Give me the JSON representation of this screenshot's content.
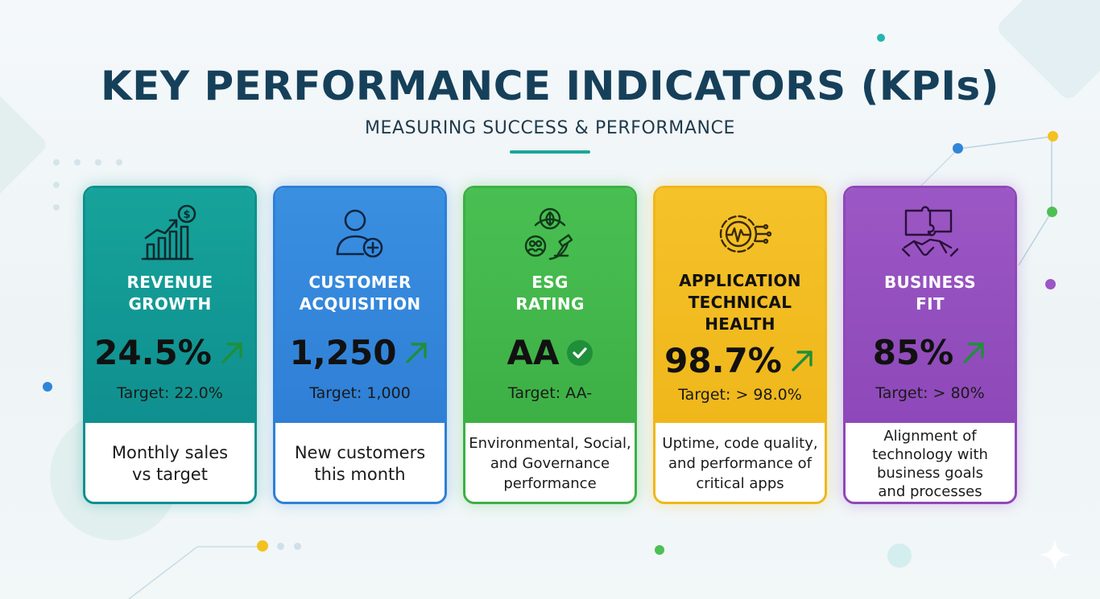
{
  "header": {
    "title": "KEY PERFORMANCE INDICATORS (KPIs)",
    "subtitle": "MEASURING SUCCESS & PERFORMANCE"
  },
  "colors": {
    "title": "#16405a",
    "accent_rule": "#1ea59a",
    "trend_up": "#1f8f3a"
  },
  "cards": [
    {
      "id": "revenue-growth",
      "title_line1": "REVENUE",
      "title_line2": "GROWTH",
      "value": "24.5%",
      "trend": "up",
      "target": "Target: 22.0%",
      "description_line1": "Monthly sales",
      "description_line2": "vs target",
      "icon": "chart-growth-dollar-icon",
      "color": "#16a39a",
      "color_dark": "#0f8f8f"
    },
    {
      "id": "customer-acquisition",
      "title_line1": "CUSTOMER",
      "title_line2": "ACQUISITION",
      "value": "1,250",
      "trend": "up",
      "target": "Target: 1,000",
      "description_line1": "New customers",
      "description_line2": "this month",
      "icon": "user-add-icon",
      "color": "#3a8fe0",
      "color_dark": "#2f7fd6"
    },
    {
      "id": "esg-rating",
      "title_line1": "ESG",
      "title_line2": "RATING",
      "value": "AA",
      "trend": "check",
      "target": "Target: AA-",
      "description_line1": "Environmental, Social,",
      "description_line2": "and Governance",
      "description_line3": "performance",
      "icon": "leaf-people-gavel-icon",
      "color": "#49bf52",
      "color_dark": "#3db045"
    },
    {
      "id": "application-technical-health",
      "title_line1": "APPLICATION",
      "title_line2": "TECHNICAL",
      "title_line3": "HEALTH",
      "value": "98.7%",
      "trend": "up",
      "target": "Target: > 98.0%",
      "description_line1": "Uptime, code quality,",
      "description_line2": "and performance of",
      "description_line3": "critical apps",
      "icon": "gear-pulse-circuit-icon",
      "color": "#f5c22a",
      "color_dark": "#efb71a"
    },
    {
      "id": "business-fit",
      "title_line1": "BUSINESS",
      "title_line2": "FIT",
      "value": "85%",
      "trend": "up",
      "target": "Target: > 80%",
      "description_line1": "Alignment of",
      "description_line2": "technology with",
      "description_line3": "business goals",
      "description_line4": "and processes",
      "icon": "puzzle-handshake-icon",
      "color": "#9b57c4",
      "color_dark": "#8e48b9"
    }
  ]
}
